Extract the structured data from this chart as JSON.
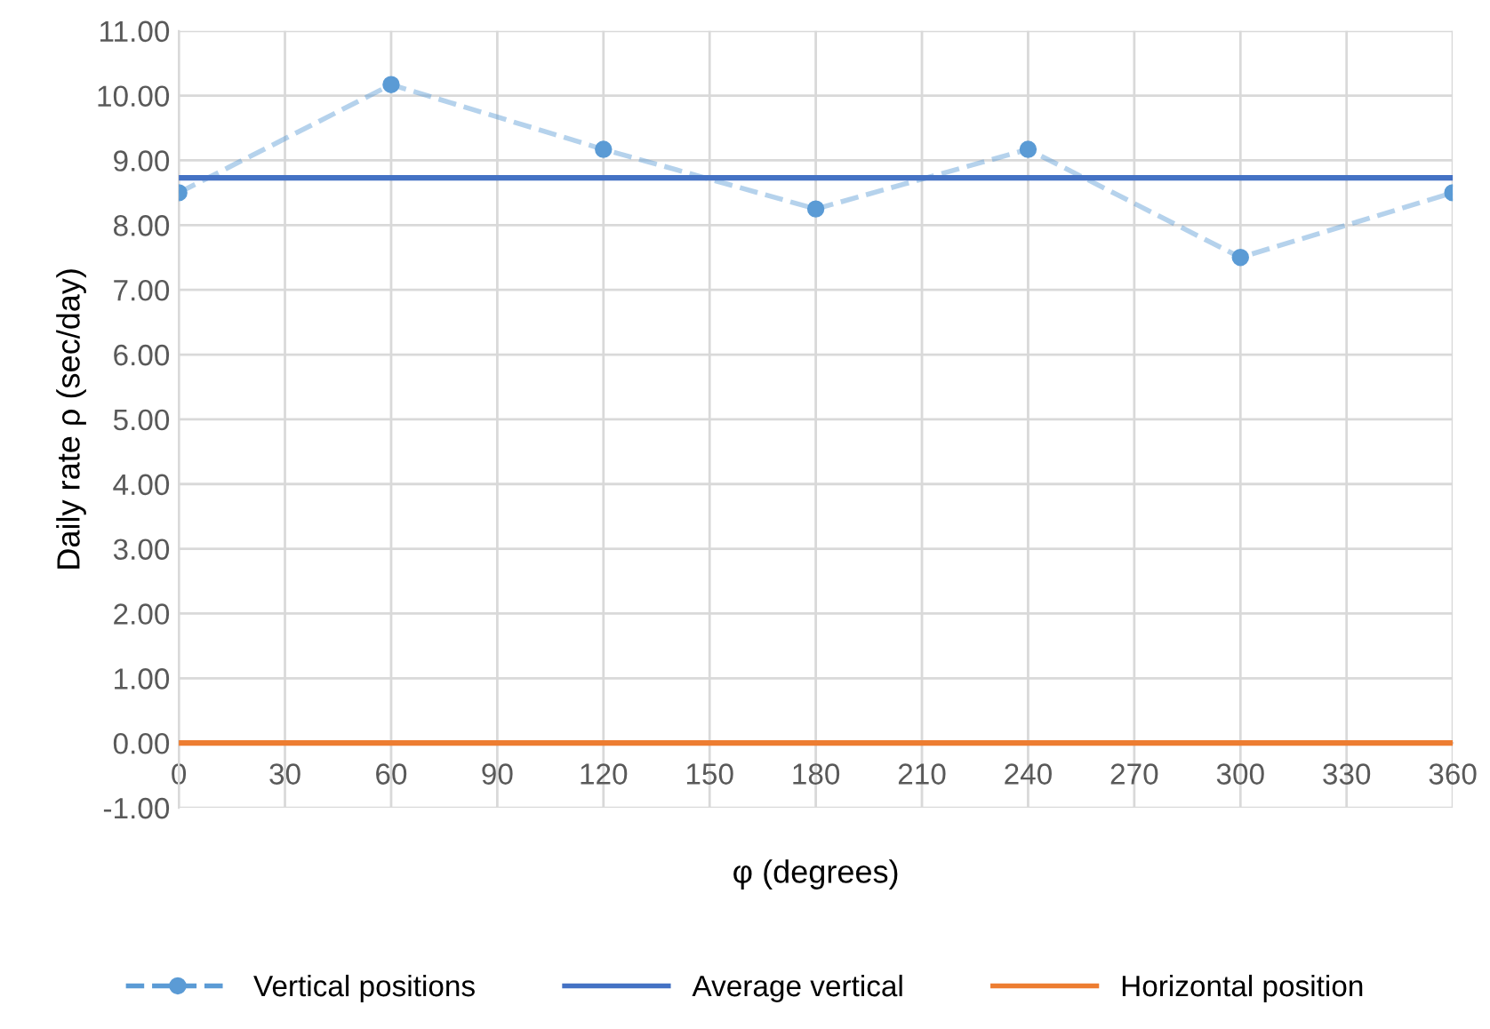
{
  "chart_data": {
    "type": "line",
    "xlabel": "φ (degrees)",
    "ylabel": "Daily rate ρ (sec/day)",
    "series": [
      {
        "name": "Vertical positions",
        "color": "#5b9bd5",
        "x": [
          0,
          60,
          120,
          180,
          240,
          300,
          360
        ],
        "values": [
          8.5,
          10.17,
          9.17,
          8.25,
          9.17,
          7.5,
          8.5
        ],
        "marker": "circle",
        "line_style": "dashed"
      },
      {
        "name": "Average vertical",
        "color": "#4472c4",
        "x": [
          0,
          360
        ],
        "values": [
          8.73,
          8.73
        ],
        "line_style": "solid"
      },
      {
        "name": "Horizontal position",
        "color": "#ed7d31",
        "x": [
          0,
          360
        ],
        "values": [
          0,
          0
        ],
        "line_style": "solid"
      }
    ],
    "xlim": [
      0,
      360
    ],
    "xticks": [
      0,
      30,
      60,
      90,
      120,
      150,
      180,
      210,
      240,
      270,
      300,
      330,
      360
    ],
    "ylim": [
      -1,
      11
    ],
    "yticks": [
      {
        "value": -1,
        "label": "-1.00"
      },
      {
        "value": 0,
        "label": "0.00"
      },
      {
        "value": 1,
        "label": "1.00"
      },
      {
        "value": 2,
        "label": "2.00"
      },
      {
        "value": 3,
        "label": "3.00"
      },
      {
        "value": 4,
        "label": "4.00"
      },
      {
        "value": 5,
        "label": "5.00"
      },
      {
        "value": 6,
        "label": "6.00"
      },
      {
        "value": 7,
        "label": "7.00"
      },
      {
        "value": 8,
        "label": "8.00"
      },
      {
        "value": 9,
        "label": "9.00"
      },
      {
        "value": 10,
        "label": "10.00"
      },
      {
        "value": 11,
        "label": "11.00"
      }
    ],
    "grid": true,
    "legend": "bottom"
  }
}
